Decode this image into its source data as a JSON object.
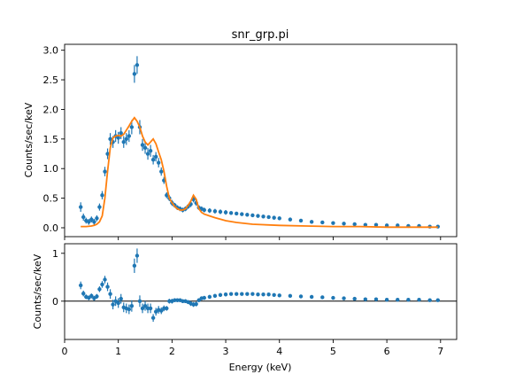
{
  "chart_data": {
    "title": "snr_grp.pi",
    "xlabel": "Energy (keV)",
    "x_ticks": [
      "0",
      "1",
      "2",
      "3",
      "4",
      "5",
      "6",
      "7"
    ],
    "xlim": [
      0,
      7.3
    ],
    "colors": {
      "data": "#1f77b4",
      "model": "#ff7f0e",
      "zero_line": "#000000"
    },
    "panels": [
      {
        "name": "spectrum",
        "type": "scatter",
        "ylabel": "Counts/sec/keV",
        "ylim": [
          -0.15,
          3.1
        ],
        "y_ticks": [
          "0.0",
          "0.5",
          "1.0",
          "1.5",
          "2.0",
          "2.5",
          "3.0"
        ],
        "series": [
          {
            "kind": "data",
            "x": [
              0.3,
              0.35,
              0.4,
              0.45,
              0.5,
              0.55,
              0.6,
              0.65,
              0.7,
              0.75,
              0.8,
              0.85,
              0.9,
              0.95,
              1.0,
              1.05,
              1.1,
              1.15,
              1.2,
              1.25,
              1.3,
              1.35,
              1.4,
              1.45,
              1.5,
              1.55,
              1.6,
              1.65,
              1.7,
              1.75,
              1.8,
              1.85,
              1.9,
              1.95,
              2.0,
              2.05,
              2.1,
              2.15,
              2.2,
              2.25,
              2.3,
              2.35,
              2.4,
              2.45,
              2.5,
              2.55,
              2.6,
              2.7,
              2.8,
              2.9,
              3.0,
              3.1,
              3.2,
              3.3,
              3.4,
              3.5,
              3.6,
              3.7,
              3.8,
              3.9,
              4.0,
              4.2,
              4.4,
              4.6,
              4.8,
              5.0,
              5.2,
              5.4,
              5.6,
              5.8,
              6.0,
              6.2,
              6.4,
              6.6,
              6.8,
              6.95
            ],
            "y": [
              0.35,
              0.18,
              0.12,
              0.1,
              0.14,
              0.1,
              0.16,
              0.35,
              0.55,
              0.95,
              1.25,
              1.5,
              1.45,
              1.55,
              1.52,
              1.6,
              1.45,
              1.5,
              1.55,
              1.7,
              2.6,
              2.75,
              1.7,
              1.4,
              1.35,
              1.25,
              1.3,
              1.15,
              1.2,
              1.1,
              0.95,
              0.8,
              0.55,
              0.5,
              0.42,
              0.38,
              0.34,
              0.32,
              0.3,
              0.32,
              0.36,
              0.4,
              0.48,
              0.42,
              0.34,
              0.32,
              0.3,
              0.29,
              0.28,
              0.27,
              0.26,
              0.25,
              0.24,
              0.23,
              0.22,
              0.21,
              0.2,
              0.19,
              0.18,
              0.17,
              0.16,
              0.14,
              0.12,
              0.1,
              0.09,
              0.08,
              0.07,
              0.06,
              0.05,
              0.05,
              0.04,
              0.04,
              0.03,
              0.03,
              0.02,
              0.02
            ],
            "yerr": [
              0.08,
              0.06,
              0.05,
              0.05,
              0.05,
              0.05,
              0.05,
              0.06,
              0.07,
              0.08,
              0.09,
              0.1,
              0.1,
              0.1,
              0.1,
              0.1,
              0.1,
              0.1,
              0.1,
              0.12,
              0.15,
              0.15,
              0.12,
              0.1,
              0.1,
              0.1,
              0.1,
              0.08,
              0.08,
              0.08,
              0.07,
              0.06,
              0.05,
              0.05,
              0.05,
              0.04,
              0.04,
              0.04,
              0.04,
              0.04,
              0.04,
              0.05,
              0.05,
              0.05,
              0.04,
              0.04,
              0.04,
              0.04,
              0.04,
              0.04,
              0.04,
              0.03,
              0.03,
              0.03,
              0.03,
              0.03,
              0.03,
              0.03,
              0.03,
              0.03,
              0.03,
              0.03,
              0.02,
              0.02,
              0.02,
              0.02,
              0.02,
              0.02,
              0.02,
              0.02,
              0.02,
              0.02,
              0.02,
              0.02,
              0.02,
              0.02
            ]
          },
          {
            "kind": "model",
            "type": "line",
            "x": [
              0.3,
              0.4,
              0.5,
              0.55,
              0.6,
              0.65,
              0.7,
              0.75,
              0.8,
              0.85,
              0.9,
              0.95,
              1.0,
              1.05,
              1.1,
              1.15,
              1.2,
              1.25,
              1.3,
              1.35,
              1.4,
              1.45,
              1.5,
              1.55,
              1.6,
              1.65,
              1.7,
              1.75,
              1.8,
              1.85,
              1.9,
              1.95,
              2.0,
              2.05,
              2.1,
              2.15,
              2.2,
              2.25,
              2.3,
              2.35,
              2.4,
              2.45,
              2.5,
              2.55,
              2.6,
              2.7,
              2.8,
              3.0,
              3.2,
              3.5,
              4.0,
              4.5,
              5.0,
              5.5,
              6.0,
              6.5,
              6.95
            ],
            "y": [
              0.02,
              0.02,
              0.03,
              0.04,
              0.06,
              0.1,
              0.2,
              0.5,
              0.95,
              1.35,
              1.52,
              1.55,
              1.56,
              1.55,
              1.58,
              1.65,
              1.72,
              1.8,
              1.86,
              1.8,
              1.7,
              1.55,
              1.45,
              1.4,
              1.45,
              1.5,
              1.42,
              1.28,
              1.15,
              0.95,
              0.7,
              0.5,
              0.42,
              0.36,
              0.32,
              0.3,
              0.3,
              0.32,
              0.38,
              0.45,
              0.55,
              0.48,
              0.32,
              0.26,
              0.23,
              0.2,
              0.17,
              0.12,
              0.09,
              0.06,
              0.04,
              0.03,
              0.02,
              0.02,
              0.01,
              0.01,
              0.01
            ]
          }
        ]
      },
      {
        "name": "residuals",
        "type": "scatter",
        "ylabel": "Counts/sec/keV",
        "ylim": [
          -0.8,
          1.2
        ],
        "y_ticks": [
          "1",
          "0"
        ],
        "zero_line": true,
        "series": [
          {
            "kind": "data",
            "x": [
              0.3,
              0.35,
              0.4,
              0.45,
              0.5,
              0.55,
              0.6,
              0.65,
              0.7,
              0.75,
              0.8,
              0.85,
              0.9,
              0.95,
              1.0,
              1.05,
              1.1,
              1.15,
              1.2,
              1.25,
              1.3,
              1.35,
              1.4,
              1.45,
              1.5,
              1.55,
              1.6,
              1.65,
              1.7,
              1.75,
              1.8,
              1.85,
              1.9,
              1.95,
              2.0,
              2.05,
              2.1,
              2.15,
              2.2,
              2.25,
              2.3,
              2.35,
              2.4,
              2.45,
              2.5,
              2.55,
              2.6,
              2.7,
              2.8,
              2.9,
              3.0,
              3.1,
              3.2,
              3.3,
              3.4,
              3.5,
              3.6,
              3.7,
              3.8,
              3.9,
              4.0,
              4.2,
              4.4,
              4.6,
              4.8,
              5.0,
              5.2,
              5.4,
              5.6,
              5.8,
              6.0,
              6.2,
              6.4,
              6.6,
              6.8,
              6.95
            ],
            "y": [
              0.33,
              0.16,
              0.09,
              0.07,
              0.11,
              0.06,
              0.1,
              0.25,
              0.35,
              0.45,
              0.3,
              0.15,
              -0.07,
              0.0,
              -0.04,
              0.05,
              -0.13,
              -0.15,
              -0.17,
              -0.1,
              0.74,
              0.95,
              0.0,
              -0.15,
              -0.1,
              -0.15,
              -0.15,
              -0.35,
              -0.22,
              -0.18,
              -0.2,
              -0.15,
              -0.15,
              0.0,
              0.0,
              0.02,
              0.02,
              0.02,
              0.0,
              0.0,
              -0.02,
              -0.05,
              -0.07,
              -0.06,
              0.02,
              0.06,
              0.07,
              0.09,
              0.11,
              0.13,
              0.14,
              0.15,
              0.15,
              0.15,
              0.15,
              0.15,
              0.14,
              0.14,
              0.14,
              0.13,
              0.12,
              0.11,
              0.1,
              0.09,
              0.08,
              0.07,
              0.06,
              0.05,
              0.04,
              0.04,
              0.03,
              0.03,
              0.03,
              0.03,
              0.02,
              0.02
            ],
            "yerr": [
              0.08,
              0.06,
              0.05,
              0.05,
              0.05,
              0.05,
              0.05,
              0.06,
              0.07,
              0.08,
              0.09,
              0.1,
              0.1,
              0.1,
              0.1,
              0.1,
              0.1,
              0.1,
              0.1,
              0.12,
              0.15,
              0.15,
              0.12,
              0.1,
              0.1,
              0.1,
              0.1,
              0.08,
              0.08,
              0.08,
              0.07,
              0.06,
              0.05,
              0.05,
              0.05,
              0.04,
              0.04,
              0.04,
              0.04,
              0.04,
              0.04,
              0.05,
              0.05,
              0.05,
              0.04,
              0.04,
              0.04,
              0.04,
              0.04,
              0.04,
              0.04,
              0.03,
              0.03,
              0.03,
              0.03,
              0.03,
              0.03,
              0.03,
              0.03,
              0.03,
              0.03,
              0.03,
              0.02,
              0.02,
              0.02,
              0.02,
              0.02,
              0.02,
              0.02,
              0.02,
              0.02,
              0.02,
              0.02,
              0.02,
              0.02,
              0.02
            ]
          }
        ]
      }
    ]
  }
}
